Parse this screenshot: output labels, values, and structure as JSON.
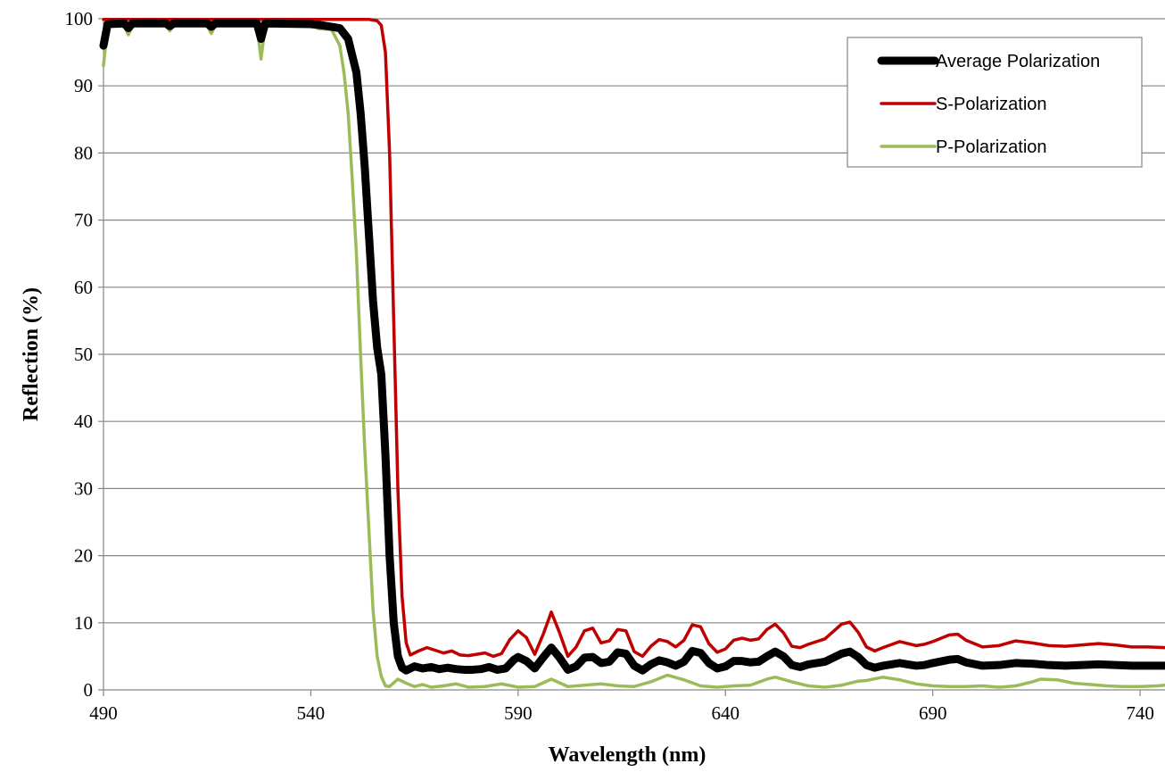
{
  "chart_data": {
    "type": "line",
    "title": "",
    "xlabel": "Wavelength (nm)",
    "ylabel": "Reflection (%)",
    "xlim": [
      490,
      746
    ],
    "ylim": [
      0,
      100
    ],
    "x_ticks": [
      490,
      540,
      590,
      640,
      690,
      740
    ],
    "y_ticks": [
      0,
      10,
      20,
      30,
      40,
      50,
      60,
      70,
      80,
      90,
      100
    ],
    "grid": "horizontal",
    "legend_position": "top-right",
    "series": [
      {
        "name": "Average Polarization",
        "color": "#000000",
        "points": [
          [
            490,
            96
          ],
          [
            491,
            99.2
          ],
          [
            495,
            99.3
          ],
          [
            496,
            98.6
          ],
          [
            497,
            99.3
          ],
          [
            505,
            99.3
          ],
          [
            506,
            98.9
          ],
          [
            507,
            99.3
          ],
          [
            515,
            99.3
          ],
          [
            516,
            98.8
          ],
          [
            517,
            99.3
          ],
          [
            527,
            99.3
          ],
          [
            528,
            97
          ],
          [
            529,
            99.3
          ],
          [
            540,
            99.2
          ],
          [
            543,
            99
          ],
          [
            547,
            98.6
          ],
          [
            549,
            97
          ],
          [
            551,
            92
          ],
          [
            552,
            86
          ],
          [
            553,
            78
          ],
          [
            554,
            68
          ],
          [
            555,
            58
          ],
          [
            556,
            51
          ],
          [
            557,
            47
          ],
          [
            558,
            35
          ],
          [
            559,
            20
          ],
          [
            560,
            10
          ],
          [
            561,
            5
          ],
          [
            562,
            3.3
          ],
          [
            563,
            2.9
          ],
          [
            565,
            3.5
          ],
          [
            567,
            3.2
          ],
          [
            569,
            3.4
          ],
          [
            571,
            3.1
          ],
          [
            573,
            3.3
          ],
          [
            575,
            3.1
          ],
          [
            577,
            3.0
          ],
          [
            579,
            3.0
          ],
          [
            581,
            3.1
          ],
          [
            583,
            3.4
          ],
          [
            585,
            3.0
          ],
          [
            587,
            3.2
          ],
          [
            589,
            4.5
          ],
          [
            590,
            4.9
          ],
          [
            592,
            4.3
          ],
          [
            594,
            3.2
          ],
          [
            596,
            4.8
          ],
          [
            598,
            6.3
          ],
          [
            600,
            4.8
          ],
          [
            602,
            3.0
          ],
          [
            604,
            3.5
          ],
          [
            606,
            4.8
          ],
          [
            608,
            4.9
          ],
          [
            610,
            4.0
          ],
          [
            612,
            4.2
          ],
          [
            614,
            5.6
          ],
          [
            616,
            5.4
          ],
          [
            618,
            3.6
          ],
          [
            620,
            2.9
          ],
          [
            622,
            3.8
          ],
          [
            624,
            4.4
          ],
          [
            626,
            4.1
          ],
          [
            628,
            3.6
          ],
          [
            630,
            4.2
          ],
          [
            632,
            5.8
          ],
          [
            634,
            5.5
          ],
          [
            636,
            4.0
          ],
          [
            638,
            3.2
          ],
          [
            640,
            3.5
          ],
          [
            642,
            4.3
          ],
          [
            644,
            4.3
          ],
          [
            646,
            4.1
          ],
          [
            648,
            4.2
          ],
          [
            650,
            5.0
          ],
          [
            652,
            5.7
          ],
          [
            654,
            5.0
          ],
          [
            656,
            3.7
          ],
          [
            658,
            3.4
          ],
          [
            660,
            3.8
          ],
          [
            664,
            4.2
          ],
          [
            668,
            5.4
          ],
          [
            670,
            5.7
          ],
          [
            672,
            4.9
          ],
          [
            674,
            3.7
          ],
          [
            676,
            3.3
          ],
          [
            678,
            3.6
          ],
          [
            682,
            4.0
          ],
          [
            686,
            3.6
          ],
          [
            688,
            3.7
          ],
          [
            690,
            4.0
          ],
          [
            694,
            4.5
          ],
          [
            696,
            4.6
          ],
          [
            698,
            4.1
          ],
          [
            702,
            3.6
          ],
          [
            706,
            3.7
          ],
          [
            710,
            4.0
          ],
          [
            714,
            3.9
          ],
          [
            718,
            3.7
          ],
          [
            722,
            3.6
          ],
          [
            726,
            3.7
          ],
          [
            730,
            3.8
          ],
          [
            734,
            3.7
          ],
          [
            738,
            3.6
          ],
          [
            742,
            3.6
          ],
          [
            746,
            3.6
          ]
        ]
      },
      {
        "name": "S-Polarization",
        "color": "#C00000",
        "points": [
          [
            490,
            99.9
          ],
          [
            554,
            99.9
          ],
          [
            556,
            99.7
          ],
          [
            557,
            99
          ],
          [
            558,
            95
          ],
          [
            559,
            80
          ],
          [
            560,
            55
          ],
          [
            561,
            30
          ],
          [
            562,
            14
          ],
          [
            563,
            7
          ],
          [
            564,
            5.2
          ],
          [
            566,
            5.8
          ],
          [
            568,
            6.3
          ],
          [
            570,
            5.9
          ],
          [
            572,
            5.5
          ],
          [
            574,
            5.8
          ],
          [
            576,
            5.2
          ],
          [
            578,
            5.1
          ],
          [
            580,
            5.3
          ],
          [
            582,
            5.5
          ],
          [
            584,
            5.0
          ],
          [
            586,
            5.4
          ],
          [
            588,
            7.5
          ],
          [
            590,
            8.8
          ],
          [
            592,
            7.8
          ],
          [
            594,
            5.3
          ],
          [
            596,
            8.2
          ],
          [
            598,
            11.6
          ],
          [
            600,
            8.5
          ],
          [
            602,
            5.0
          ],
          [
            604,
            6.4
          ],
          [
            606,
            8.8
          ],
          [
            608,
            9.2
          ],
          [
            610,
            7.0
          ],
          [
            612,
            7.3
          ],
          [
            614,
            9.0
          ],
          [
            616,
            8.8
          ],
          [
            618,
            5.7
          ],
          [
            620,
            5.0
          ],
          [
            622,
            6.5
          ],
          [
            624,
            7.5
          ],
          [
            626,
            7.2
          ],
          [
            628,
            6.4
          ],
          [
            630,
            7.4
          ],
          [
            632,
            9.7
          ],
          [
            634,
            9.4
          ],
          [
            636,
            6.9
          ],
          [
            638,
            5.6
          ],
          [
            640,
            6.1
          ],
          [
            642,
            7.4
          ],
          [
            644,
            7.7
          ],
          [
            646,
            7.4
          ],
          [
            648,
            7.6
          ],
          [
            650,
            9.0
          ],
          [
            652,
            9.8
          ],
          [
            654,
            8.5
          ],
          [
            656,
            6.5
          ],
          [
            658,
            6.3
          ],
          [
            660,
            6.8
          ],
          [
            664,
            7.6
          ],
          [
            668,
            9.8
          ],
          [
            670,
            10.1
          ],
          [
            672,
            8.6
          ],
          [
            674,
            6.4
          ],
          [
            676,
            5.8
          ],
          [
            678,
            6.3
          ],
          [
            682,
            7.2
          ],
          [
            686,
            6.6
          ],
          [
            688,
            6.8
          ],
          [
            690,
            7.2
          ],
          [
            694,
            8.2
          ],
          [
            696,
            8.3
          ],
          [
            698,
            7.4
          ],
          [
            702,
            6.4
          ],
          [
            706,
            6.6
          ],
          [
            710,
            7.3
          ],
          [
            714,
            7.0
          ],
          [
            718,
            6.6
          ],
          [
            722,
            6.5
          ],
          [
            726,
            6.7
          ],
          [
            730,
            6.9
          ],
          [
            734,
            6.7
          ],
          [
            738,
            6.4
          ],
          [
            742,
            6.4
          ],
          [
            746,
            6.3
          ]
        ]
      },
      {
        "name": "P-Polarization",
        "color": "#9BBB59",
        "points": [
          [
            490,
            93
          ],
          [
            491,
            99
          ],
          [
            495,
            99
          ],
          [
            496,
            97.6
          ],
          [
            497,
            99
          ],
          [
            505,
            99
          ],
          [
            506,
            98.2
          ],
          [
            507,
            99
          ],
          [
            515,
            99
          ],
          [
            516,
            97.8
          ],
          [
            517,
            99
          ],
          [
            527,
            99
          ],
          [
            528,
            94
          ],
          [
            529,
            99
          ],
          [
            540,
            99
          ],
          [
            542,
            98.5
          ],
          [
            545,
            98.4
          ],
          [
            547,
            96
          ],
          [
            548,
            92
          ],
          [
            549,
            86
          ],
          [
            550,
            76
          ],
          [
            551,
            65
          ],
          [
            552,
            50
          ],
          [
            553,
            36
          ],
          [
            554,
            24
          ],
          [
            555,
            12
          ],
          [
            556,
            5
          ],
          [
            557,
            2
          ],
          [
            558,
            0.6
          ],
          [
            559,
            0.5
          ],
          [
            561,
            1.6
          ],
          [
            563,
            1.0
          ],
          [
            565,
            0.5
          ],
          [
            567,
            0.8
          ],
          [
            569,
            0.4
          ],
          [
            572,
            0.6
          ],
          [
            575,
            0.9
          ],
          [
            578,
            0.4
          ],
          [
            582,
            0.5
          ],
          [
            586,
            0.9
          ],
          [
            590,
            0.4
          ],
          [
            594,
            0.5
          ],
          [
            598,
            1.6
          ],
          [
            602,
            0.5
          ],
          [
            606,
            0.7
          ],
          [
            610,
            0.9
          ],
          [
            614,
            0.6
          ],
          [
            618,
            0.5
          ],
          [
            622,
            1.2
          ],
          [
            626,
            2.2
          ],
          [
            630,
            1.5
          ],
          [
            634,
            0.6
          ],
          [
            638,
            0.4
          ],
          [
            642,
            0.6
          ],
          [
            646,
            0.7
          ],
          [
            650,
            1.6
          ],
          [
            652,
            1.9
          ],
          [
            656,
            1.2
          ],
          [
            660,
            0.6
          ],
          [
            664,
            0.4
          ],
          [
            668,
            0.7
          ],
          [
            672,
            1.3
          ],
          [
            674,
            1.4
          ],
          [
            678,
            1.9
          ],
          [
            682,
            1.5
          ],
          [
            686,
            0.9
          ],
          [
            690,
            0.6
          ],
          [
            694,
            0.5
          ],
          [
            698,
            0.5
          ],
          [
            702,
            0.6
          ],
          [
            706,
            0.4
          ],
          [
            710,
            0.6
          ],
          [
            714,
            1.2
          ],
          [
            716,
            1.6
          ],
          [
            720,
            1.5
          ],
          [
            724,
            1.0
          ],
          [
            728,
            0.8
          ],
          [
            732,
            0.6
          ],
          [
            736,
            0.5
          ],
          [
            740,
            0.5
          ],
          [
            744,
            0.6
          ],
          [
            746,
            0.7
          ]
        ]
      }
    ]
  }
}
